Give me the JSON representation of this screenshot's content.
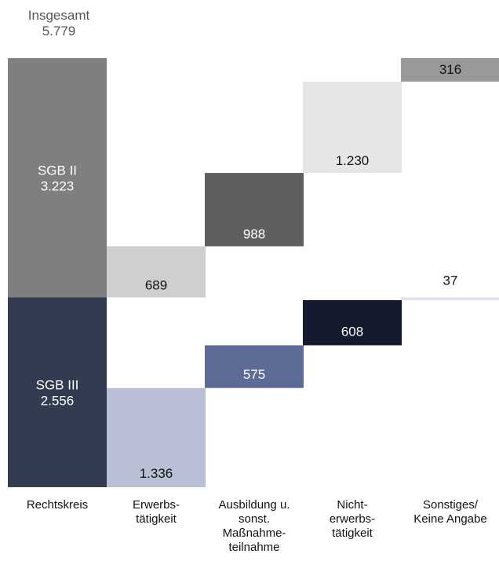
{
  "chart_data": {
    "type": "bar",
    "total": {
      "label": "Insgesamt",
      "value": "5.779"
    },
    "categories": [
      "Rechtskreis",
      "Erwerbs-\ntätigkeit",
      "Ausbildung u.\nsonst.\nMaßnahme-\nteilnahme",
      "Nicht-\nerwerbs-\ntätigkeit",
      "Sonstiges/\nKeine Angabe"
    ],
    "series": [
      {
        "name": "SGB II",
        "total": "3.223",
        "values": [
          3223,
          689,
          988,
          1230,
          316
        ],
        "labels": [
          "",
          "689",
          "988",
          "1.230",
          "316"
        ],
        "colors": [
          "#7f7f7f",
          "#cfcfcf",
          "#5f5f5f",
          "#e6e6e6",
          "#999999"
        ]
      },
      {
        "name": "SGB III",
        "total": "2.556",
        "values": [
          2556,
          1336,
          575,
          608,
          37
        ],
        "labels": [
          "",
          "1.336",
          "575",
          "608",
          "37"
        ],
        "colors": [
          "#323c50",
          "#b9bfd4",
          "#5e6b97",
          "#131a2e",
          "#dde3ec"
        ]
      }
    ]
  }
}
